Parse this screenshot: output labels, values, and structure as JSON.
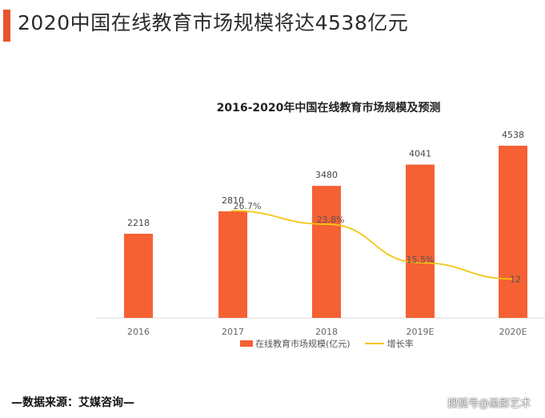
{
  "header": {
    "title": "2020中国在线教育市场规模将达4538亿元",
    "accent_color": "#e8542d"
  },
  "chart_data": {
    "type": "bar",
    "title": "2016-2020年中国在线教育市场规模及预测",
    "categories": [
      "2016",
      "2017",
      "2018",
      "2019E",
      "2020E"
    ],
    "series": [
      {
        "name": "在线教育市场规模(亿元)",
        "type": "bar",
        "values": [
          2218,
          2810,
          3480,
          4041,
          4538
        ],
        "labels": [
          "2218",
          "2810",
          "3480",
          "4041",
          "4538"
        ],
        "color": "#f56133"
      },
      {
        "name": "增长率",
        "type": "line",
        "values": [
          null,
          26.7,
          23.8,
          15.5,
          12
        ],
        "labels": [
          "",
          "26.7%",
          "23.8%",
          "15.5%",
          "12"
        ],
        "color": "#f3c613"
      }
    ],
    "ylim": [
      0,
      5000
    ],
    "y2lim": [
      0,
      30
    ],
    "grid": false,
    "legend_position": "bottom"
  },
  "footer": {
    "source": "—数据来源：艾媒咨询—",
    "watermark": "搜狐号@画影艺术"
  }
}
